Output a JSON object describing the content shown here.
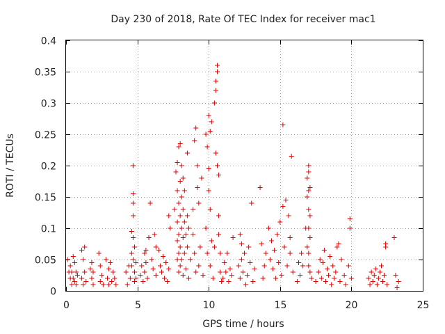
{
  "chart_data": {
    "type": "scatter",
    "title": "Day 230 of 2018, Rate Of TEC Index for receiver mac1",
    "xlabel": "GPS time / hours",
    "ylabel": "ROTI / TECUs",
    "xlim": [
      0,
      25
    ],
    "ylim": [
      0,
      0.4
    ],
    "xticks": [
      0,
      5,
      10,
      15,
      20,
      25
    ],
    "xtick_labels": [
      "0",
      "5",
      "10",
      "15",
      "20",
      "25"
    ],
    "yticks": [
      0,
      0.05,
      0.1,
      0.15,
      0.2,
      0.25,
      0.3,
      0.35,
      0.4
    ],
    "ytick_labels": [
      "0",
      "0.05",
      "0.1",
      "0.15",
      "0.2",
      "0.25",
      "0.3",
      "0.35",
      "0.4"
    ],
    "grid": true,
    "marker": "plus",
    "marker_color": "#e00000",
    "series": [
      {
        "name": "ROTI",
        "points": [
          [
            0.1,
            0.05
          ],
          [
            0.2,
            0.03
          ],
          [
            0.3,
            0.02
          ],
          [
            0.3,
            0.04
          ],
          [
            0.4,
            0.01
          ],
          [
            0.4,
            0.03
          ],
          [
            0.5,
            0.055
          ],
          [
            0.5,
            0.02
          ],
          [
            0.6,
            0.045
          ],
          [
            0.6,
            0.015
          ],
          [
            0.7,
            0.03
          ],
          [
            0.7,
            0.01
          ],
          [
            0.8,
            0.025
          ],
          [
            1.1,
            0.065
          ],
          [
            1.1,
            0.02
          ],
          [
            1.2,
            0.05
          ],
          [
            1.2,
            0.01
          ],
          [
            1.3,
            0.07
          ],
          [
            1.3,
            0.03
          ],
          [
            1.4,
            0.015
          ],
          [
            1.7,
            0.035
          ],
          [
            1.8,
            0.045
          ],
          [
            1.8,
            0.02
          ],
          [
            1.9,
            0.01
          ],
          [
            1.9,
            0.03
          ],
          [
            2.3,
            0.06
          ],
          [
            2.4,
            0.04
          ],
          [
            2.4,
            0.015
          ],
          [
            2.5,
            0.025
          ],
          [
            2.6,
            0.01
          ],
          [
            2.8,
            0.05
          ],
          [
            2.9,
            0.02
          ],
          [
            3.0,
            0.035
          ],
          [
            3.0,
            0.01
          ],
          [
            3.1,
            0.045
          ],
          [
            3.2,
            0.015
          ],
          [
            3.3,
            0.03
          ],
          [
            3.4,
            0.02
          ],
          [
            3.5,
            0.01
          ],
          [
            4.2,
            0.03
          ],
          [
            4.3,
            0.01
          ],
          [
            4.4,
            0.04
          ],
          [
            4.5,
            0.02
          ],
          [
            4.6,
            0.095
          ],
          [
            4.6,
            0.06
          ],
          [
            4.6,
            0.04
          ],
          [
            4.7,
            0.2
          ],
          [
            4.7,
            0.2
          ],
          [
            4.7,
            0.155
          ],
          [
            4.7,
            0.14
          ],
          [
            4.7,
            0.12
          ],
          [
            4.7,
            0.085
          ],
          [
            4.7,
            0.05
          ],
          [
            4.8,
            0.07
          ],
          [
            4.8,
            0.03
          ],
          [
            4.8,
            0.015
          ],
          [
            4.9,
            0.045
          ],
          [
            4.9,
            0.02
          ],
          [
            5.2,
            0.025
          ],
          [
            5.3,
            0.04
          ],
          [
            5.4,
            0.015
          ],
          [
            5.5,
            0.06
          ],
          [
            5.5,
            0.03
          ],
          [
            5.6,
            0.065
          ],
          [
            5.6,
            0.045
          ],
          [
            5.7,
            0.02
          ],
          [
            5.8,
            0.085
          ],
          [
            5.9,
            0.14
          ],
          [
            6.0,
            0.05
          ],
          [
            6.1,
            0.035
          ],
          [
            6.2,
            0.09
          ],
          [
            6.3,
            0.07
          ],
          [
            6.3,
            0.025
          ],
          [
            6.5,
            0.065
          ],
          [
            6.6,
            0.04
          ],
          [
            6.7,
            0.03
          ],
          [
            6.8,
            0.055
          ],
          [
            6.9,
            0.02
          ],
          [
            7.0,
            0.045
          ],
          [
            7.1,
            0.015
          ],
          [
            7.2,
            0.035
          ],
          [
            7.2,
            0.12
          ],
          [
            7.3,
            0.1
          ],
          [
            7.6,
            0.13
          ],
          [
            7.7,
            0.19
          ],
          [
            7.8,
            0.205
          ],
          [
            7.8,
            0.16
          ],
          [
            7.8,
            0.11
          ],
          [
            7.8,
            0.08
          ],
          [
            7.8,
            0.05
          ],
          [
            7.9,
            0.23
          ],
          [
            7.9,
            0.14
          ],
          [
            7.9,
            0.09
          ],
          [
            7.9,
            0.06
          ],
          [
            7.9,
            0.03
          ],
          [
            8.0,
            0.235
          ],
          [
            8.0,
            0.175
          ],
          [
            8.0,
            0.12
          ],
          [
            8.0,
            0.07
          ],
          [
            8.0,
            0.04
          ],
          [
            8.1,
            0.2
          ],
          [
            8.1,
            0.15
          ],
          [
            8.1,
            0.1
          ],
          [
            8.1,
            0.05
          ],
          [
            8.2,
            0.18
          ],
          [
            8.2,
            0.13
          ],
          [
            8.2,
            0.085
          ],
          [
            8.2,
            0.025
          ],
          [
            8.3,
            0.16
          ],
          [
            8.3,
            0.11
          ],
          [
            8.3,
            0.06
          ],
          [
            8.4,
            0.09
          ],
          [
            8.4,
            0.035
          ],
          [
            8.5,
            0.22
          ],
          [
            8.5,
            0.12
          ],
          [
            8.5,
            0.07
          ],
          [
            8.6,
            0.1
          ],
          [
            8.6,
            0.02
          ],
          [
            8.7,
            0.05
          ],
          [
            8.9,
            0.13
          ],
          [
            8.9,
            0.09
          ],
          [
            9.0,
            0.24
          ],
          [
            9.0,
            0.06
          ],
          [
            9.1,
            0.26
          ],
          [
            9.1,
            0.03
          ],
          [
            9.2,
            0.2
          ],
          [
            9.2,
            0.165
          ],
          [
            9.3,
            0.14
          ],
          [
            9.3,
            0.04
          ],
          [
            9.4,
            0.07
          ],
          [
            9.5,
            0.18
          ],
          [
            9.6,
            0.025
          ],
          [
            9.8,
            0.25
          ],
          [
            9.8,
            0.1
          ],
          [
            9.9,
            0.23
          ],
          [
            9.9,
            0.06
          ],
          [
            10.0,
            0.28
          ],
          [
            10.0,
            0.195
          ],
          [
            10.0,
            0.16
          ],
          [
            10.1,
            0.255
          ],
          [
            10.1,
            0.13
          ],
          [
            10.1,
            0.04
          ],
          [
            10.2,
            0.27
          ],
          [
            10.2,
            0.08
          ],
          [
            10.3,
            0.02
          ],
          [
            10.4,
            0.3
          ],
          [
            10.4,
            0.07
          ],
          [
            10.5,
            0.335
          ],
          [
            10.5,
            0.32
          ],
          [
            10.5,
            0.22
          ],
          [
            10.6,
            0.36
          ],
          [
            10.6,
            0.35
          ],
          [
            10.6,
            0.2
          ],
          [
            10.7,
            0.185
          ],
          [
            10.7,
            0.12
          ],
          [
            10.7,
            0.09
          ],
          [
            10.8,
            0.06
          ],
          [
            10.8,
            0.03
          ],
          [
            10.9,
            0.015
          ],
          [
            11.0,
            0.02
          ],
          [
            11.1,
            0.045
          ],
          [
            11.2,
            0.03
          ],
          [
            11.3,
            0.06
          ],
          [
            11.4,
            0.015
          ],
          [
            11.5,
            0.035
          ],
          [
            11.6,
            0.025
          ],
          [
            11.7,
            0.085
          ],
          [
            12.1,
            0.04
          ],
          [
            12.2,
            0.09
          ],
          [
            12.2,
            0.02
          ],
          [
            12.3,
            0.075
          ],
          [
            12.3,
            0.05
          ],
          [
            12.4,
            0.03
          ],
          [
            12.5,
            0.06
          ],
          [
            12.6,
            0.01
          ],
          [
            12.7,
            0.025
          ],
          [
            12.8,
            0.07
          ],
          [
            12.9,
            0.045
          ],
          [
            13.0,
            0.14
          ],
          [
            13.1,
            0.015
          ],
          [
            13.2,
            0.035
          ],
          [
            13.6,
            0.165
          ],
          [
            13.7,
            0.075
          ],
          [
            13.8,
            0.02
          ],
          [
            13.9,
            0.04
          ],
          [
            14.0,
            0.06
          ],
          [
            14.2,
            0.1
          ],
          [
            14.3,
            0.05
          ],
          [
            14.4,
            0.08
          ],
          [
            14.5,
            0.035
          ],
          [
            14.6,
            0.065
          ],
          [
            14.7,
            0.02
          ],
          [
            14.8,
            0.09
          ],
          [
            14.9,
            0.045
          ],
          [
            15.0,
            0.11
          ],
          [
            15.1,
            0.025
          ],
          [
            15.2,
            0.265
          ],
          [
            15.2,
            0.135
          ],
          [
            15.3,
            0.07
          ],
          [
            15.4,
            0.145
          ],
          [
            15.5,
            0.04
          ],
          [
            15.6,
            0.12
          ],
          [
            15.7,
            0.085
          ],
          [
            15.7,
            0.06
          ],
          [
            15.8,
            0.215
          ],
          [
            15.9,
            0.03
          ],
          [
            16.2,
            0.015
          ],
          [
            16.3,
            0.045
          ],
          [
            16.4,
            0.025
          ],
          [
            16.5,
            0.06
          ],
          [
            16.6,
            0.04
          ],
          [
            16.8,
            0.1
          ],
          [
            16.9,
            0.18
          ],
          [
            16.9,
            0.15
          ],
          [
            16.9,
            0.07
          ],
          [
            17.0,
            0.2
          ],
          [
            17.0,
            0.19
          ],
          [
            17.0,
            0.16
          ],
          [
            17.0,
            0.13
          ],
          [
            17.0,
            0.1
          ],
          [
            17.0,
            0.06
          ],
          [
            17.0,
            0.04
          ],
          [
            17.1,
            0.165
          ],
          [
            17.1,
            0.12
          ],
          [
            17.1,
            0.085
          ],
          [
            17.1,
            0.03
          ],
          [
            17.2,
            0.02
          ],
          [
            17.5,
            0.015
          ],
          [
            17.7,
            0.03
          ],
          [
            17.8,
            0.05
          ],
          [
            17.9,
            0.02
          ],
          [
            18.0,
            0.045
          ],
          [
            18.1,
            0.065
          ],
          [
            18.2,
            0.015
          ],
          [
            18.3,
            0.035
          ],
          [
            18.4,
            0.025
          ],
          [
            18.5,
            0.055
          ],
          [
            18.6,
            0.01
          ],
          [
            18.7,
            0.04
          ],
          [
            18.8,
            0.02
          ],
          [
            18.9,
            0.03
          ],
          [
            19.0,
            0.07
          ],
          [
            19.1,
            0.075
          ],
          [
            19.2,
            0.015
          ],
          [
            19.3,
            0.05
          ],
          [
            19.5,
            0.025
          ],
          [
            19.6,
            0.01
          ],
          [
            19.8,
            0.04
          ],
          [
            19.9,
            0.115
          ],
          [
            19.9,
            0.1
          ],
          [
            20.0,
            0.02
          ],
          [
            21.2,
            0.02
          ],
          [
            21.3,
            0.01
          ],
          [
            21.4,
            0.03
          ],
          [
            21.5,
            0.015
          ],
          [
            21.6,
            0.025
          ],
          [
            21.7,
            0.035
          ],
          [
            21.8,
            0.01
          ],
          [
            21.9,
            0.02
          ],
          [
            22.0,
            0.03
          ],
          [
            22.1,
            0.04
          ],
          [
            22.2,
            0.015
          ],
          [
            22.3,
            0.025
          ],
          [
            22.4,
            0.075
          ],
          [
            22.4,
            0.07
          ],
          [
            22.5,
            0.01
          ],
          [
            23.0,
            0.085
          ],
          [
            23.1,
            0.025
          ],
          [
            23.2,
            0.005
          ],
          [
            23.3,
            0.015
          ]
        ]
      }
    ]
  }
}
